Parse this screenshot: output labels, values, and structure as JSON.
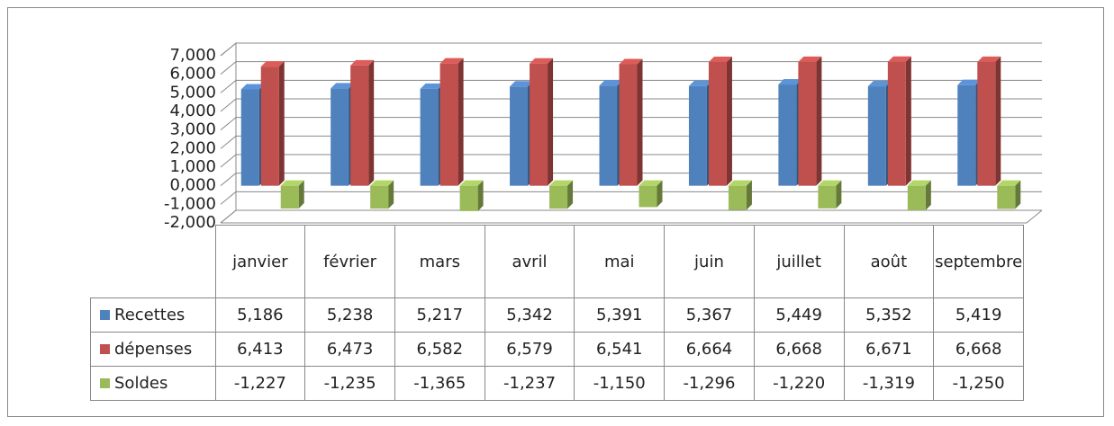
{
  "chart_data": {
    "type": "bar3d",
    "categories": [
      "janvier",
      "février",
      "mars",
      "avril",
      "mai",
      "juin",
      "juillet",
      "août",
      "septembre"
    ],
    "series": [
      {
        "name": "Recettes",
        "color": "#4f81bd",
        "values": [
          5186,
          5238,
          5217,
          5342,
          5391,
          5367,
          5449,
          5352,
          5419
        ],
        "value_labels": [
          "5,186",
          "5,238",
          "5,217",
          "5,342",
          "5,391",
          "5,367",
          "5,449",
          "5,352",
          "5,419"
        ]
      },
      {
        "name": "dépenses",
        "color": "#c0504d",
        "values": [
          6413,
          6473,
          6582,
          6579,
          6541,
          6664,
          6668,
          6671,
          6668
        ],
        "value_labels": [
          "6,413",
          "6,473",
          "6,582",
          "6,579",
          "6,541",
          "6,664",
          "6,668",
          "6,671",
          "6,668"
        ]
      },
      {
        "name": "Soldes",
        "color": "#9bbb59",
        "values": [
          -1227,
          -1235,
          -1365,
          -1237,
          -1150,
          -1296,
          -1220,
          -1319,
          -1250
        ],
        "value_labels": [
          "-1,227",
          "-1,235",
          "-1,365",
          "-1,237",
          "-1,150",
          "-1,296",
          "-1,220",
          "-1,319",
          "-1,250"
        ]
      }
    ],
    "ylim": [
      -2000,
      7000
    ],
    "yticks": [
      {
        "value": -2000,
        "label": "-2,000"
      },
      {
        "value": -1000,
        "label": "-1,000"
      },
      {
        "value": 0,
        "label": "0,000"
      },
      {
        "value": 1000,
        "label": "1,000"
      },
      {
        "value": 2000,
        "label": "2,000"
      },
      {
        "value": 3000,
        "label": "3,000"
      },
      {
        "value": 4000,
        "label": "4,000"
      },
      {
        "value": 5000,
        "label": "5,000"
      },
      {
        "value": 6000,
        "label": "6,000"
      },
      {
        "value": 7000,
        "label": "7,000"
      }
    ],
    "grid": true
  }
}
